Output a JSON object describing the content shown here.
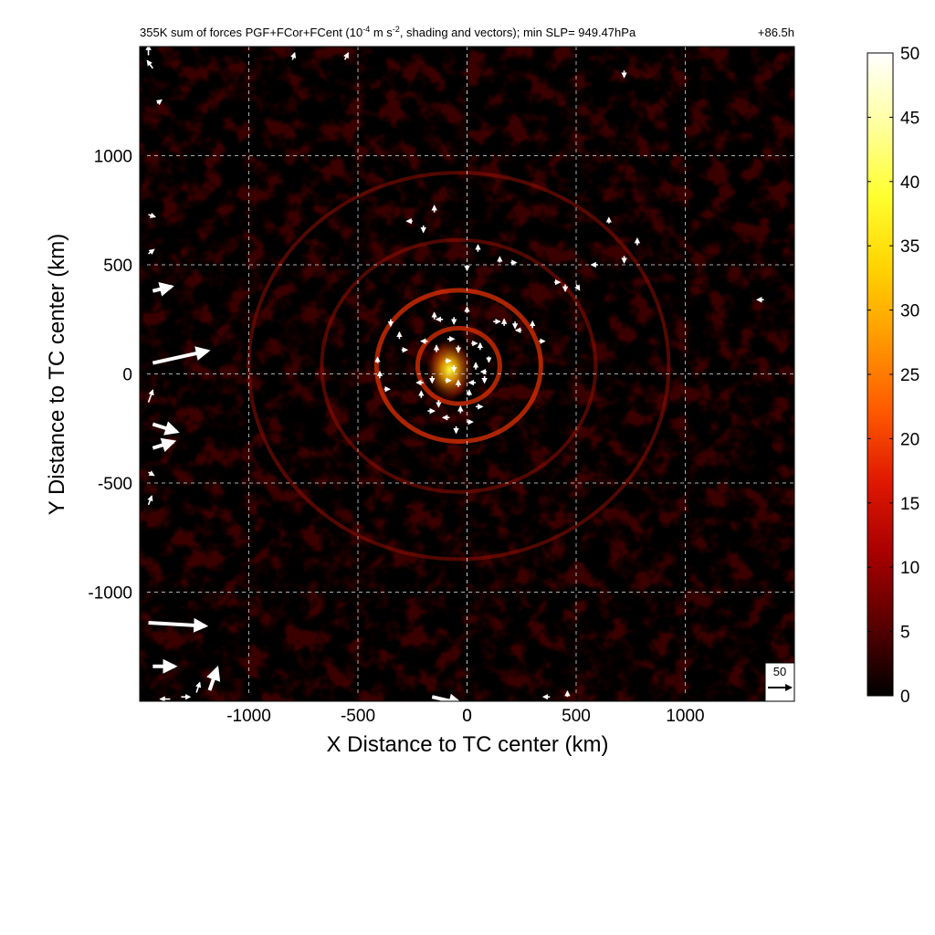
{
  "chart_data": {
    "type": "heatmap",
    "title": {
      "prefix": "355K sum of forces PGF+FCor+FCent (10",
      "exponent1": "-4",
      "middle": " m s",
      "exponent2": "-2",
      "suffix": ", shading and vectors); min SLP= 949.47hPa",
      "time": "+86.5h"
    },
    "xlabel": "X Distance to TC center (km)",
    "ylabel": "Y Distance to TC center (km)",
    "xlim": [
      -1500,
      1500
    ],
    "ylim": [
      -1500,
      1500
    ],
    "xticks": [
      -1000,
      -500,
      0,
      500,
      1000
    ],
    "yticks": [
      -1000,
      -500,
      0,
      500,
      1000
    ],
    "grid": true,
    "colorbar": {
      "min": 0,
      "max": 50,
      "ticks": [
        0,
        5,
        10,
        15,
        20,
        25,
        30,
        35,
        40,
        45,
        50
      ],
      "colors": [
        "#000000",
        "#5a0000",
        "#a80000",
        "#e01800",
        "#ff5a00",
        "#ff9a00",
        "#ffd400",
        "#ffff30",
        "#ffffa0",
        "#ffffff"
      ]
    },
    "reference_vector": {
      "label": "50",
      "magnitude": 50
    },
    "max_feature": {
      "x": -80,
      "y": 20,
      "value": 36
    },
    "vectors": [
      {
        "x": -1460,
        "y": 1460,
        "u": 0,
        "v": 18
      },
      {
        "x": -1440,
        "y": 1400,
        "u": -10,
        "v": 14
      },
      {
        "x": -1420,
        "y": 1240,
        "u": 8,
        "v": 6
      },
      {
        "x": -1460,
        "y": 730,
        "u": 12,
        "v": -4
      },
      {
        "x": -1460,
        "y": 550,
        "u": 10,
        "v": 8
      },
      {
        "x": -1440,
        "y": 380,
        "u": 34,
        "v": 8
      },
      {
        "x": -1440,
        "y": 50,
        "u": 100,
        "v": 22
      },
      {
        "x": -1460,
        "y": -130,
        "u": 8,
        "v": 22
      },
      {
        "x": -1440,
        "y": -230,
        "u": 44,
        "v": -14
      },
      {
        "x": -1440,
        "y": -340,
        "u": 38,
        "v": 12
      },
      {
        "x": -1460,
        "y": -450,
        "u": 10,
        "v": -6
      },
      {
        "x": -1460,
        "y": -600,
        "u": 6,
        "v": 16
      },
      {
        "x": -1460,
        "y": -1140,
        "u": 104,
        "v": -6
      },
      {
        "x": -1440,
        "y": -1340,
        "u": 40,
        "v": 0
      },
      {
        "x": -1180,
        "y": -1450,
        "u": 14,
        "v": 40
      },
      {
        "x": -1240,
        "y": -1460,
        "u": 6,
        "v": 18
      },
      {
        "x": -1310,
        "y": -1480,
        "u": 16,
        "v": 0
      },
      {
        "x": -1360,
        "y": -1490,
        "u": -18,
        "v": 0
      },
      {
        "x": -160,
        "y": -1480,
        "u": 52,
        "v": -12
      },
      {
        "x": 380,
        "y": -1480,
        "u": -12,
        "v": 0
      },
      {
        "x": 460,
        "y": -1480,
        "u": 0,
        "v": 10
      },
      {
        "x": 720,
        "y": 1390,
        "u": 0,
        "v": -12
      },
      {
        "x": -800,
        "y": 1440,
        "u": 4,
        "v": 12
      },
      {
        "x": -560,
        "y": 1440,
        "u": 6,
        "v": 12
      },
      {
        "x": 1360,
        "y": 340,
        "u": -12,
        "v": 0
      },
      {
        "x": -200,
        "y": 680,
        "u": 0,
        "v": -12
      },
      {
        "x": -150,
        "y": 740,
        "u": 0,
        "v": 12
      },
      {
        "x": -250,
        "y": 700,
        "u": -10,
        "v": 0
      },
      {
        "x": 50,
        "y": 560,
        "u": 0,
        "v": 12
      },
      {
        "x": 150,
        "y": 510,
        "u": 0,
        "v": 10
      },
      {
        "x": 200,
        "y": 510,
        "u": 10,
        "v": 0
      },
      {
        "x": 0,
        "y": 500,
        "u": 0,
        "v": -10
      },
      {
        "x": 400,
        "y": 420,
        "u": 10,
        "v": 0
      },
      {
        "x": 450,
        "y": 410,
        "u": 0,
        "v": -12
      },
      {
        "x": 500,
        "y": 410,
        "u": 6,
        "v": -10
      },
      {
        "x": 600,
        "y": 500,
        "u": -12,
        "v": 0
      },
      {
        "x": 650,
        "y": 690,
        "u": 0,
        "v": 10
      },
      {
        "x": 720,
        "y": 540,
        "u": 0,
        "v": -12
      },
      {
        "x": 780,
        "y": 590,
        "u": 0,
        "v": 12
      },
      {
        "x": -350,
        "y": 250,
        "u": 0,
        "v": -12
      },
      {
        "x": -310,
        "y": 160,
        "u": 0,
        "v": 12
      },
      {
        "x": -300,
        "y": 110,
        "u": 10,
        "v": 0
      },
      {
        "x": -150,
        "y": 250,
        "u": 0,
        "v": 12
      },
      {
        "x": -110,
        "y": 250,
        "u": -12,
        "v": 0
      },
      {
        "x": -60,
        "y": 260,
        "u": 0,
        "v": -12
      },
      {
        "x": 0,
        "y": 280,
        "u": 0,
        "v": 10
      },
      {
        "x": 120,
        "y": 240,
        "u": 12,
        "v": 0
      },
      {
        "x": 170,
        "y": 220,
        "u": 0,
        "v": 12
      },
      {
        "x": 220,
        "y": 240,
        "u": 0,
        "v": -12
      },
      {
        "x": 250,
        "y": 200,
        "u": -10,
        "v": 0
      },
      {
        "x": 300,
        "y": 210,
        "u": 0,
        "v": 12
      },
      {
        "x": 330,
        "y": 150,
        "u": 10,
        "v": 0
      },
      {
        "x": -180,
        "y": 150,
        "u": -12,
        "v": 0
      },
      {
        "x": -140,
        "y": 100,
        "u": 0,
        "v": 12
      },
      {
        "x": -90,
        "y": 160,
        "u": 12,
        "v": 0
      },
      {
        "x": -40,
        "y": 130,
        "u": 0,
        "v": -12
      },
      {
        "x": 20,
        "y": 140,
        "u": 10,
        "v": 0
      },
      {
        "x": 60,
        "y": 110,
        "u": 0,
        "v": 12
      },
      {
        "x": 100,
        "y": 80,
        "u": 0,
        "v": -10
      },
      {
        "x": -100,
        "y": 60,
        "u": 10,
        "v": 0
      },
      {
        "x": -60,
        "y": 40,
        "u": 0,
        "v": -12
      },
      {
        "x": 40,
        "y": 20,
        "u": 0,
        "v": 12
      },
      {
        "x": 90,
        "y": 10,
        "u": -10,
        "v": 0
      },
      {
        "x": -410,
        "y": 50,
        "u": 0,
        "v": 10
      },
      {
        "x": -400,
        "y": -20,
        "u": 0,
        "v": 12
      },
      {
        "x": -380,
        "y": -70,
        "u": 10,
        "v": 0
      },
      {
        "x": -200,
        "y": -40,
        "u": -12,
        "v": 0
      },
      {
        "x": -160,
        "y": -10,
        "u": 0,
        "v": -12
      },
      {
        "x": -100,
        "y": -30,
        "u": 10,
        "v": 0
      },
      {
        "x": -40,
        "y": -60,
        "u": 0,
        "v": 12
      },
      {
        "x": 40,
        "y": -40,
        "u": -12,
        "v": 0
      },
      {
        "x": 80,
        "y": -10,
        "u": 0,
        "v": -12
      },
      {
        "x": -210,
        "y": -110,
        "u": 0,
        "v": 12
      },
      {
        "x": -180,
        "y": -170,
        "u": 12,
        "v": 0
      },
      {
        "x": -130,
        "y": -120,
        "u": 0,
        "v": -12
      },
      {
        "x": -80,
        "y": -200,
        "u": -12,
        "v": 0
      },
      {
        "x": -30,
        "y": -180,
        "u": 0,
        "v": 12
      },
      {
        "x": 0,
        "y": -220,
        "u": 10,
        "v": 0
      },
      {
        "x": -50,
        "y": -240,
        "u": 0,
        "v": -12
      },
      {
        "x": 10,
        "y": -100,
        "u": 0,
        "v": 10
      },
      {
        "x": 40,
        "y": -150,
        "u": 12,
        "v": 0
      }
    ]
  }
}
